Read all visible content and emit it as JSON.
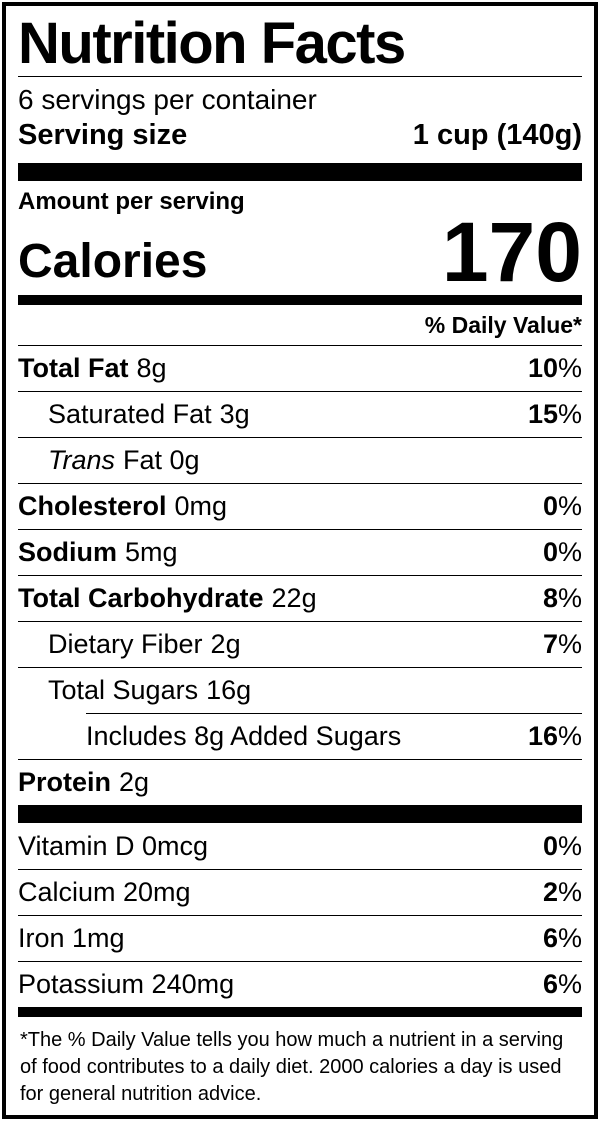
{
  "colors": {
    "ink": "#000000",
    "paper": "#ffffff"
  },
  "title": "Nutrition Facts",
  "servings_per_container": "6 servings per container",
  "serving_size": {
    "label": "Serving size",
    "value": "1 cup (140g)"
  },
  "amount_per_serving": "Amount per serving",
  "calories": {
    "label": "Calories",
    "value": "170"
  },
  "daily_value_header": "% Daily Value*",
  "nutrients": [
    {
      "name": "Total Fat",
      "amount": "8g",
      "dv": "10",
      "pct": "%"
    },
    {
      "name": "Saturated Fat",
      "amount": "3g",
      "dv": "15",
      "pct": "%"
    },
    {
      "name": "Trans",
      "amount": "Fat 0g",
      "dv": "",
      "pct": ""
    },
    {
      "name": "Cholesterol",
      "amount": "0mg",
      "dv": "0",
      "pct": "%"
    },
    {
      "name": "Sodium",
      "amount": "5mg",
      "dv": "0",
      "pct": "%"
    },
    {
      "name": "Total Carbohydrate",
      "amount": "22g",
      "dv": "8",
      "pct": "%"
    },
    {
      "name": "Dietary Fiber",
      "amount": "2g",
      "dv": "7",
      "pct": "%"
    },
    {
      "name": "Total Sugars",
      "amount": "16g",
      "dv": "",
      "pct": ""
    },
    {
      "name": "Includes 8g Added Sugars",
      "amount": "",
      "dv": "16",
      "pct": "%"
    },
    {
      "name": "Protein",
      "amount": "2g",
      "dv": "",
      "pct": ""
    }
  ],
  "micronutrients": [
    {
      "name": "Vitamin D 0mcg",
      "dv": "0",
      "pct": "%"
    },
    {
      "name": "Calcium 20mg",
      "dv": "2",
      "pct": "%"
    },
    {
      "name": "Iron 1mg",
      "dv": "6",
      "pct": "%"
    },
    {
      "name": "Potassium 240mg",
      "dv": "6",
      "pct": "%"
    }
  ],
  "footnote": "*The % Daily Value tells you how much a nutrient in a serving of food contributes to a daily diet. 2000 calories a day is used for general nutrition advice."
}
